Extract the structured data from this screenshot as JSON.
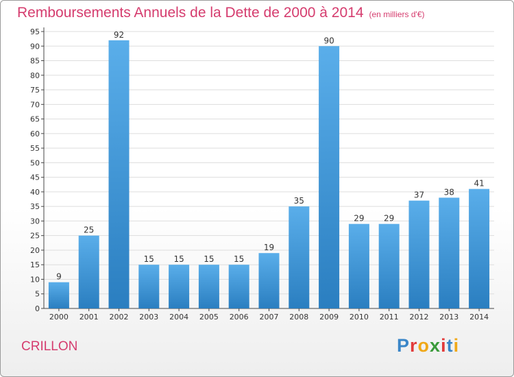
{
  "header": {
    "title": "Remboursements Annuels de la Dette de 2000 à 2014",
    "subtitle": "(en milliers d'€)"
  },
  "footer": {
    "commune": "CRILLON",
    "brand_letters": [
      {
        "ch": "P",
        "color": "#3b86c8"
      },
      {
        "ch": "r",
        "color": "#e23b3b"
      },
      {
        "ch": "o",
        "color": "#f0a818"
      },
      {
        "ch": "x",
        "color": "#3a9a3a"
      },
      {
        "ch": "i",
        "color": "#e23b3b"
      },
      {
        "ch": "t",
        "color": "#3b86c8"
      },
      {
        "ch": "i",
        "color": "#f0a818"
      }
    ]
  },
  "chart_data": {
    "type": "bar",
    "categories": [
      "2000",
      "2001",
      "2002",
      "2003",
      "2004",
      "2005",
      "2006",
      "2007",
      "2008",
      "2009",
      "2010",
      "2011",
      "2012",
      "2013",
      "2014"
    ],
    "values": [
      9,
      25,
      92,
      15,
      15,
      15,
      15,
      19,
      35,
      90,
      29,
      29,
      37,
      38,
      41
    ],
    "ylim": [
      0,
      95
    ],
    "yticks": [
      0,
      5,
      10,
      15,
      20,
      25,
      30,
      35,
      40,
      45,
      50,
      55,
      60,
      65,
      70,
      75,
      80,
      85,
      90,
      95
    ],
    "grid": true,
    "bar_color_top": "#5aaeea",
    "bar_color_bottom": "#2a7ec0"
  }
}
